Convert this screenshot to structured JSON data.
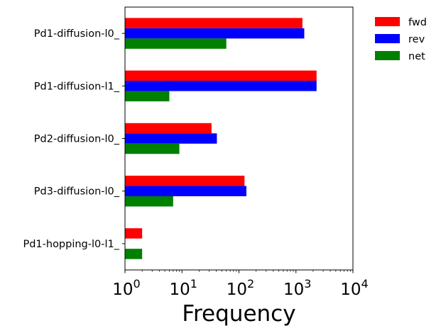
{
  "chart_data": {
    "type": "bar",
    "orientation": "horizontal",
    "xscale": "log",
    "categories": [
      "Pd1-diffusion-l0_",
      "Pd1-diffusion-l1_",
      "Pd2-diffusion-l0_",
      "Pd3-diffusion-l0_",
      "Pd1-hopping-l0-l1_"
    ],
    "series": [
      {
        "name": "fwd",
        "color": "#ff0000",
        "values": [
          1300,
          2300,
          33,
          125,
          2
        ]
      },
      {
        "name": "rev",
        "color": "#0000ff",
        "values": [
          1400,
          2300,
          41,
          135,
          0
        ]
      },
      {
        "name": "net",
        "color": "#008000",
        "values": [
          60,
          6,
          9,
          7,
          2
        ]
      }
    ],
    "xlim": [
      1,
      10000
    ],
    "xticks": [
      1,
      10,
      100,
      1000,
      10000
    ],
    "xtick_labels": [
      {
        "base": "10",
        "exp": "0"
      },
      {
        "base": "10",
        "exp": "1"
      },
      {
        "base": "10",
        "exp": "2"
      },
      {
        "base": "10",
        "exp": "3"
      },
      {
        "base": "10",
        "exp": "4"
      }
    ],
    "xlabel": "Frequency",
    "ylabel": "",
    "title": "",
    "grid": false,
    "legend_position": "outside-top-right"
  }
}
